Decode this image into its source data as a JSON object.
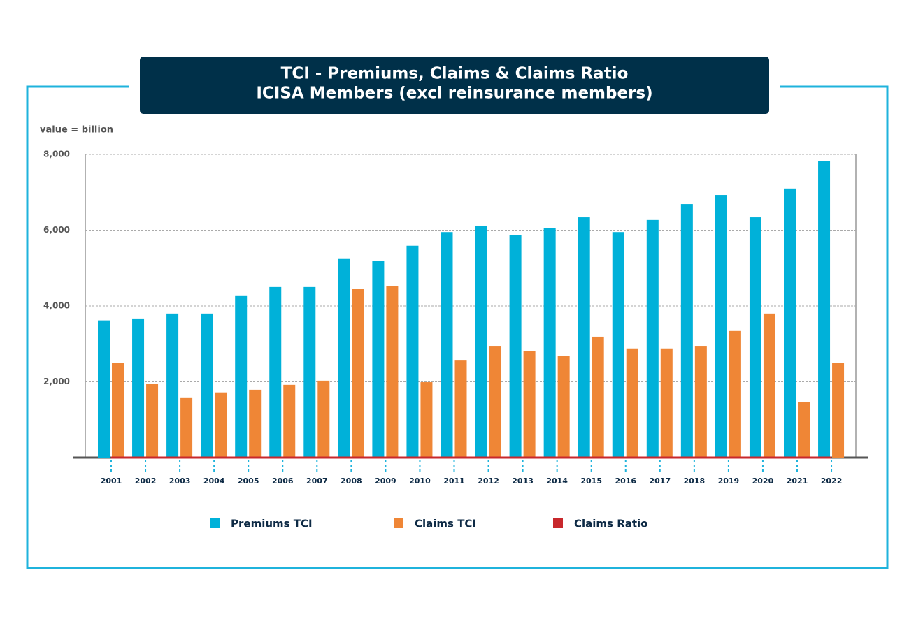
{
  "chart_data": {
    "type": "bar",
    "title": "TCI - Premiums, Claims & Claims Ratio",
    "subtitle": "ICISA Members (excl reinsurance members)",
    "unit_label": "value = billion",
    "categories": [
      "2001",
      "2002",
      "2003",
      "2004",
      "2005",
      "2006",
      "2007",
      "2008",
      "2009",
      "2010",
      "2011",
      "2012",
      "2013",
      "2014",
      "2015",
      "2016",
      "2017",
      "2018",
      "2019",
      "2020",
      "2021",
      "2022"
    ],
    "series": [
      {
        "name": "Premiums TCI",
        "color": "#00b1d9",
        "type": "bar",
        "values": [
          3620,
          3670,
          3800,
          3800,
          4280,
          4500,
          4500,
          5240,
          5180,
          5590,
          5950,
          6120,
          5880,
          6060,
          6340,
          5950,
          6270,
          6690,
          6930,
          6340,
          7100,
          7820
        ]
      },
      {
        "name": "Claims TCI",
        "color": "#ef8636",
        "type": "bar",
        "values": [
          2490,
          1940,
          1570,
          1720,
          1790,
          1920,
          2030,
          4460,
          4530,
          1990,
          2560,
          2930,
          2820,
          2690,
          3190,
          2880,
          2880,
          2930,
          3340,
          3800,
          1460,
          2490
        ]
      },
      {
        "name": "Claims Ratio",
        "color": "#c8282c",
        "type": "line",
        "values": [
          0.69,
          0.53,
          0.41,
          0.45,
          0.42,
          0.43,
          0.45,
          0.85,
          0.87,
          0.36,
          0.43,
          0.48,
          0.48,
          0.44,
          0.5,
          0.48,
          0.46,
          0.44,
          0.48,
          0.6,
          0.21,
          0.32
        ]
      }
    ],
    "ylim": [
      0,
      8000
    ],
    "yticks": [
      {
        "value": 2000,
        "label": "2,000"
      },
      {
        "value": 4000,
        "label": "4,000"
      },
      {
        "value": 6000,
        "label": "6,000"
      },
      {
        "value": 8000,
        "label": "8,000"
      }
    ],
    "grid": true,
    "legend": "bottom"
  }
}
